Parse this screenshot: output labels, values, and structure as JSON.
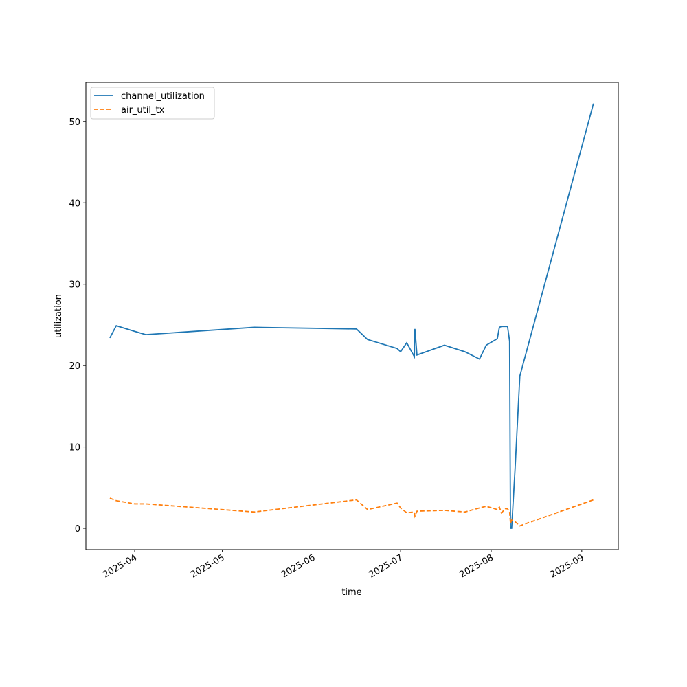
{
  "chart_data": {
    "type": "line",
    "xlabel": "time",
    "ylabel": "utilization",
    "x": [
      81.5,
      83.7,
      90,
      93.8,
      130.9,
      165.9,
      169.7,
      179.8,
      181,
      183.1,
      185.7,
      185.9,
      186.6,
      196,
      203,
      208,
      210.3,
      214.1,
      214.8,
      215.5,
      216.9,
      217.6,
      218.3,
      218.6,
      219,
      220.2,
      221.8,
      247
    ],
    "series": [
      {
        "name": "channel_utilization",
        "color": "#1f77b4",
        "linestyle": "solid",
        "values": [
          23.4,
          24.9,
          24.2,
          23.8,
          24.7,
          24.5,
          23.2,
          22.1,
          21.7,
          22.8,
          21.1,
          24.5,
          21.3,
          22.5,
          21.7,
          20.8,
          22.5,
          23.3,
          24.7,
          24.8,
          24.8,
          24.8,
          23.0,
          0,
          0,
          7.5,
          18.7,
          52.2
        ]
      },
      {
        "name": "air_util_tx",
        "color": "#ff7f0e",
        "linestyle": "dashed",
        "values": [
          3.7,
          3.4,
          3.0,
          3.0,
          2.0,
          3.5,
          2.3,
          3.1,
          2.5,
          1.9,
          2.0,
          1.5,
          2.1,
          2.2,
          2.0,
          2.5,
          2.7,
          2.3,
          2.6,
          1.9,
          2.4,
          2.4,
          2.0,
          0.6,
          1.0,
          0.8,
          0.3,
          3.5
        ]
      }
    ],
    "xlim": [
      73.3,
      255.5
    ],
    "xticks": [
      {
        "value": 90,
        "label": "2025-04"
      },
      {
        "value": 120,
        "label": "2025-05"
      },
      {
        "value": 151,
        "label": "2025-06"
      },
      {
        "value": 181,
        "label": "2025-07"
      },
      {
        "value": 212,
        "label": "2025-08"
      },
      {
        "value": 243,
        "label": "2025-09"
      }
    ],
    "ylim": [
      -2.62,
      54.8
    ],
    "yticks": [
      0,
      10,
      20,
      30,
      40,
      50
    ],
    "legend": "upper left"
  }
}
